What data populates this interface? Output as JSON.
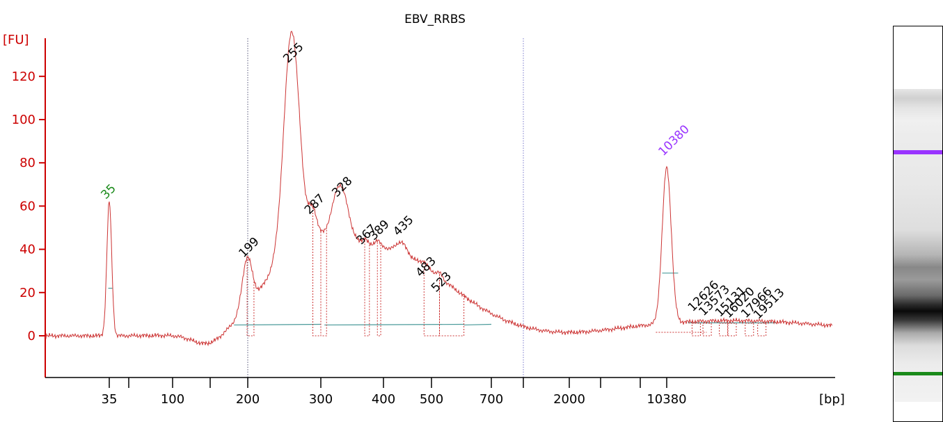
{
  "chart_data": {
    "type": "line",
    "title": "EBV_RRBS",
    "ylabel": "[FU]",
    "xlabel": "[bp]",
    "ylim": [
      -18,
      140
    ],
    "yticks": [
      0,
      20,
      40,
      60,
      80,
      100,
      120
    ],
    "y_tick_labels": [
      "0",
      "20",
      "40",
      "60",
      "80",
      "100",
      "120"
    ],
    "x_tick_labels": [
      "35",
      "100",
      "200",
      "300",
      "400",
      "500",
      "700",
      "2000",
      "10380"
    ],
    "x_scale": "sizing-ladder (non-linear)",
    "series": [
      {
        "points": [
          [
            35,
            62
          ],
          [
            199,
            35
          ],
          [
            255,
            125
          ],
          [
            287,
            55
          ],
          [
            328,
            63
          ],
          [
            367,
            41
          ],
          [
            389,
            43
          ],
          [
            435,
            45
          ],
          [
            483,
            26
          ],
          [
            523,
            19
          ],
          [
            10380,
            82
          ],
          [
            12626,
            10
          ],
          [
            13573,
            8
          ],
          [
            15131,
            7.5
          ],
          [
            16020,
            7
          ],
          [
            17966,
            7
          ],
          [
            19513,
            6.5
          ]
        ]
      }
    ],
    "peak_labels": [
      {
        "text": "35",
        "color": "#1a8a1a"
      },
      {
        "text": "199",
        "color": "#000000"
      },
      {
        "text": "255",
        "color": "#000000"
      },
      {
        "text": "287",
        "color": "#000000"
      },
      {
        "text": "328",
        "color": "#000000"
      },
      {
        "text": "367",
        "color": "#000000"
      },
      {
        "text": "389",
        "color": "#000000"
      },
      {
        "text": "435",
        "color": "#000000"
      },
      {
        "text": "483",
        "color": "#000000"
      },
      {
        "text": "523",
        "color": "#000000"
      },
      {
        "text": "10380",
        "color": "#9933ff"
      },
      {
        "text": "12626",
        "color": "#000000"
      },
      {
        "text": "13573",
        "color": "#000000"
      },
      {
        "text": "15131",
        "color": "#000000"
      },
      {
        "text": "16020",
        "color": "#000000"
      },
      {
        "text": "17966",
        "color": "#000000"
      },
      {
        "text": "19513",
        "color": "#000000"
      }
    ],
    "colors": {
      "trace": "#cc3333",
      "axis": "#cc0000",
      "baseline": "#4a9a9a",
      "region_marker": "#7777cc",
      "lower_marker": "#1a8a1a",
      "upper_marker": "#9933ff"
    }
  }
}
